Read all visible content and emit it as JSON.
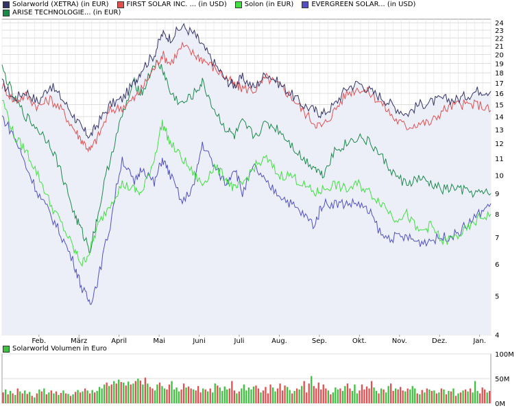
{
  "legend_main": [
    {
      "label": "Solarworld (XETRA) (in EUR)",
      "color": "#333366"
    },
    {
      "label": "FIRST SOLAR INC. ... (in USD)",
      "color": "#e05050"
    },
    {
      "label": "Solon (in EUR)",
      "color": "#40e040"
    },
    {
      "label": "EVERGREEN SOLAR... (in USD)",
      "color": "#5050c0"
    },
    {
      "label": "ARISE TECHNOLOGIE... (in EUR)",
      "color": "#1a8a4a"
    }
  ],
  "volume_legend": {
    "label": "Solarworld Volumen in Euro",
    "color": "#40c040"
  },
  "chart_data": [
    {
      "type": "line",
      "title": "",
      "y_scale": "log",
      "ylim": [
        4,
        24.5
      ],
      "y_ticks": [
        "4",
        "5",
        "6",
        "7",
        "8",
        "9",
        "10",
        "11",
        "12",
        "13",
        "14",
        "15",
        "16",
        "17",
        "18",
        "19",
        "20",
        "21",
        "22",
        "23",
        "24"
      ],
      "x_labels": [
        "Feb.",
        "März",
        "April",
        "Mai",
        "Juni",
        "Juli",
        "Aug.",
        "Sep.",
        "Okt.",
        "Nov.",
        "Dez.",
        "Jan."
      ],
      "x_range_months": [
        0,
        12.2
      ],
      "grid": true,
      "legend_position": "top",
      "series": [
        {
          "name": "Solarworld (XETRA) (in EUR)",
          "color": "#333366",
          "fill": "#eceef8",
          "points": [
            [
              0,
              17
            ],
            [
              0.3,
              15.5
            ],
            [
              0.6,
              16.2
            ],
            [
              0.9,
              15.2
            ],
            [
              1.2,
              16.8
            ],
            [
              1.5,
              15.5
            ],
            [
              1.8,
              14
            ],
            [
              2.0,
              13
            ],
            [
              2.2,
              12.5
            ],
            [
              2.4,
              13.5
            ],
            [
              2.7,
              15
            ],
            [
              3.0,
              15.5
            ],
            [
              3.3,
              17
            ],
            [
              3.5,
              18.5
            ],
            [
              3.8,
              20
            ],
            [
              4.0,
              22.5
            ],
            [
              4.2,
              22
            ],
            [
              4.5,
              23.5
            ],
            [
              4.8,
              22.5
            ],
            [
              5.0,
              21
            ],
            [
              5.3,
              19
            ],
            [
              5.6,
              17.2
            ],
            [
              5.8,
              16.8
            ],
            [
              6.0,
              17.5
            ],
            [
              6.3,
              16.5
            ],
            [
              6.6,
              18
            ],
            [
              6.9,
              17
            ],
            [
              7.2,
              16
            ],
            [
              7.5,
              15
            ],
            [
              7.8,
              14.5
            ],
            [
              8.0,
              14.2
            ],
            [
              8.3,
              15
            ],
            [
              8.6,
              16.5
            ],
            [
              8.9,
              17
            ],
            [
              9.2,
              16.2
            ],
            [
              9.5,
              15.6
            ],
            [
              9.8,
              14.8
            ],
            [
              10.1,
              14.2
            ],
            [
              10.4,
              15
            ],
            [
              10.7,
              15.2
            ],
            [
              11.0,
              15.5
            ],
            [
              11.3,
              15.4
            ],
            [
              11.6,
              15.8
            ],
            [
              11.9,
              16.3
            ],
            [
              12.2,
              16.2
            ]
          ]
        },
        {
          "name": "FIRST SOLAR INC. ... (in USD)",
          "color": "#e05050",
          "points": [
            [
              0,
              16.8
            ],
            [
              0.3,
              15.3
            ],
            [
              0.6,
              15.8
            ],
            [
              0.9,
              14.8
            ],
            [
              1.2,
              15.5
            ],
            [
              1.5,
              14.5
            ],
            [
              1.8,
              13
            ],
            [
              2.0,
              12.2
            ],
            [
              2.2,
              11.5
            ],
            [
              2.4,
              12.5
            ],
            [
              2.7,
              14.5
            ],
            [
              3.0,
              14.8
            ],
            [
              3.3,
              15.5
            ],
            [
              3.5,
              16.5
            ],
            [
              3.8,
              18.5
            ],
            [
              4.0,
              20
            ],
            [
              4.2,
              19
            ],
            [
              4.5,
              21
            ],
            [
              4.8,
              20
            ],
            [
              5.0,
              19.5
            ],
            [
              5.3,
              18.5
            ],
            [
              5.6,
              17.5
            ],
            [
              5.8,
              16.8
            ],
            [
              6.0,
              16.5
            ],
            [
              6.3,
              16.3
            ],
            [
              6.6,
              17.5
            ],
            [
              6.9,
              16.8
            ],
            [
              7.2,
              15.8
            ],
            [
              7.5,
              14.5
            ],
            [
              7.8,
              13.5
            ],
            [
              8.0,
              13.2
            ],
            [
              8.3,
              14.5
            ],
            [
              8.6,
              16
            ],
            [
              8.9,
              16.5
            ],
            [
              9.2,
              16
            ],
            [
              9.5,
              15
            ],
            [
              9.8,
              13.8
            ],
            [
              10.1,
              13.2
            ],
            [
              10.4,
              13.5
            ],
            [
              10.7,
              13.5
            ],
            [
              11.0,
              14.5
            ],
            [
              11.3,
              15
            ],
            [
              11.6,
              15
            ],
            [
              11.9,
              15
            ],
            [
              12.2,
              14.5
            ]
          ]
        },
        {
          "name": "Solon (in EUR)",
          "color": "#40e040",
          "points": [
            [
              0,
              15.5
            ],
            [
              0.3,
              12.5
            ],
            [
              0.6,
              11.5
            ],
            [
              0.9,
              10
            ],
            [
              1.2,
              8.5
            ],
            [
              1.5,
              7.5
            ],
            [
              1.8,
              6.5
            ],
            [
              2.0,
              6
            ],
            [
              2.2,
              6.5
            ],
            [
              2.4,
              7.5
            ],
            [
              2.7,
              8.5
            ],
            [
              3.0,
              9.5
            ],
            [
              3.3,
              9.2
            ],
            [
              3.5,
              9
            ],
            [
              3.8,
              11
            ],
            [
              4.0,
              13.5
            ],
            [
              4.2,
              12
            ],
            [
              4.5,
              11
            ],
            [
              4.8,
              10
            ],
            [
              5.0,
              9.5
            ],
            [
              5.3,
              10.5
            ],
            [
              5.6,
              9.8
            ],
            [
              5.8,
              9.2
            ],
            [
              6.0,
              9.5
            ],
            [
              6.3,
              10.5
            ],
            [
              6.6,
              11
            ],
            [
              6.9,
              10
            ],
            [
              7.2,
              10
            ],
            [
              7.5,
              9.5
            ],
            [
              7.8,
              9
            ],
            [
              8.0,
              9.2
            ],
            [
              8.3,
              9.5
            ],
            [
              8.6,
              9.2
            ],
            [
              8.9,
              9.5
            ],
            [
              9.2,
              9
            ],
            [
              9.5,
              8.5
            ],
            [
              9.8,
              7.8
            ],
            [
              10.1,
              8
            ],
            [
              10.4,
              7.2
            ],
            [
              10.7,
              7.5
            ],
            [
              11.0,
              6.8
            ],
            [
              11.3,
              7
            ],
            [
              11.6,
              7.3
            ],
            [
              11.9,
              7.8
            ],
            [
              12.2,
              8
            ]
          ]
        },
        {
          "name": "EVERGREEN SOLAR... (in USD)",
          "color": "#5050c0",
          "points": [
            [
              0,
              14
            ],
            [
              0.3,
              12.5
            ],
            [
              0.6,
              10.5
            ],
            [
              0.9,
              9
            ],
            [
              1.2,
              8
            ],
            [
              1.5,
              7
            ],
            [
              1.8,
              6
            ],
            [
              2.0,
              5.2
            ],
            [
              2.2,
              4.8
            ],
            [
              2.4,
              5.5
            ],
            [
              2.7,
              7.5
            ],
            [
              3.0,
              11
            ],
            [
              3.3,
              9.5
            ],
            [
              3.5,
              10.5
            ],
            [
              3.8,
              9.5
            ],
            [
              4.0,
              11
            ],
            [
              4.2,
              10
            ],
            [
              4.5,
              8.5
            ],
            [
              4.8,
              9.5
            ],
            [
              5.0,
              12
            ],
            [
              5.3,
              10.5
            ],
            [
              5.6,
              9.5
            ],
            [
              5.8,
              10.5
            ],
            [
              6.0,
              9
            ],
            [
              6.3,
              10.5
            ],
            [
              6.6,
              9.5
            ],
            [
              6.9,
              9
            ],
            [
              7.2,
              8.5
            ],
            [
              7.5,
              8
            ],
            [
              7.8,
              7.5
            ],
            [
              8.0,
              8.5
            ],
            [
              8.3,
              8.5
            ],
            [
              8.6,
              8.5
            ],
            [
              8.9,
              8.5
            ],
            [
              9.2,
              8
            ],
            [
              9.5,
              7
            ],
            [
              9.8,
              7
            ],
            [
              10.1,
              7
            ],
            [
              10.4,
              6.8
            ],
            [
              10.7,
              6.9
            ],
            [
              11.0,
              7
            ],
            [
              11.3,
              7.1
            ],
            [
              11.6,
              7.5
            ],
            [
              11.9,
              8
            ],
            [
              12.2,
              8.5
            ]
          ]
        },
        {
          "name": "ARISE TECHNOLOGIE... (in EUR)",
          "color": "#1a8a4a",
          "points": [
            [
              0,
              18.5
            ],
            [
              0.3,
              15.5
            ],
            [
              0.6,
              14
            ],
            [
              0.9,
              13
            ],
            [
              1.2,
              12
            ],
            [
              1.5,
              10
            ],
            [
              1.8,
              8
            ],
            [
              2.0,
              7.2
            ],
            [
              2.2,
              6.5
            ],
            [
              2.4,
              8
            ],
            [
              2.7,
              11
            ],
            [
              3.0,
              14
            ],
            [
              3.3,
              17
            ],
            [
              3.5,
              16
            ],
            [
              3.8,
              19
            ],
            [
              4.0,
              18.5
            ],
            [
              4.2,
              16
            ],
            [
              4.5,
              15
            ],
            [
              4.8,
              16
            ],
            [
              5.0,
              17
            ],
            [
              5.3,
              14.5
            ],
            [
              5.6,
              13
            ],
            [
              5.8,
              12.5
            ],
            [
              6.0,
              13.5
            ],
            [
              6.3,
              12.5
            ],
            [
              6.6,
              13.5
            ],
            [
              6.9,
              13
            ],
            [
              7.2,
              12
            ],
            [
              7.5,
              11
            ],
            [
              7.8,
              10.5
            ],
            [
              8.0,
              10
            ],
            [
              8.3,
              11.5
            ],
            [
              8.6,
              12
            ],
            [
              8.9,
              12.5
            ],
            [
              9.2,
              12
            ],
            [
              9.5,
              11
            ],
            [
              9.8,
              10
            ],
            [
              10.1,
              9.5
            ],
            [
              10.4,
              9.8
            ],
            [
              10.7,
              9.5
            ],
            [
              11.0,
              9.2
            ],
            [
              11.3,
              9.3
            ],
            [
              11.6,
              9.1
            ],
            [
              11.9,
              9
            ],
            [
              12.2,
              9
            ]
          ]
        }
      ]
    },
    {
      "type": "bar",
      "title": "",
      "ylabel": "",
      "ylim": [
        0,
        100
      ],
      "y_ticks": [
        "0M",
        "50M",
        "100M"
      ],
      "bar_colors": [
        "#e05050",
        "#40c040"
      ],
      "values": [
        22,
        28,
        18,
        25,
        20,
        17,
        30,
        24,
        20,
        26,
        19,
        23,
        15,
        12,
        20,
        28,
        24,
        30,
        18,
        22,
        26,
        20,
        24,
        17,
        21,
        26,
        20,
        19,
        15,
        18,
        23,
        27,
        22,
        24,
        30,
        26,
        20,
        27,
        22,
        25,
        33,
        30,
        38,
        42,
        35,
        38,
        45,
        40,
        48,
        43,
        42,
        36,
        44,
        38,
        40,
        45,
        50,
        46,
        38,
        52,
        40,
        33,
        30,
        26,
        38,
        42,
        35,
        30,
        28,
        38,
        45,
        28,
        32,
        24,
        28,
        40,
        32,
        34,
        30,
        28,
        26,
        35,
        22,
        30,
        28,
        24,
        30,
        22,
        40,
        36,
        32,
        25,
        34,
        28,
        30,
        45,
        26,
        20,
        24,
        30,
        38,
        26,
        32,
        28,
        34,
        36,
        30,
        22,
        26,
        33,
        20,
        38,
        32,
        24,
        30,
        40,
        26,
        36,
        33,
        27,
        20,
        25,
        30,
        28,
        35,
        45,
        22,
        40,
        55,
        35,
        30,
        42,
        28,
        38,
        30,
        26,
        18,
        22,
        32,
        28,
        30,
        25,
        35,
        40,
        30,
        25,
        38,
        20,
        26,
        38,
        28,
        34,
        30,
        45,
        32,
        25,
        20,
        30,
        28,
        22,
        35,
        40,
        25,
        30,
        28,
        33,
        26,
        24,
        30,
        28,
        35,
        30,
        20,
        18,
        27,
        22,
        30,
        28,
        25,
        26,
        20,
        22,
        30,
        28,
        18,
        25,
        24,
        30,
        15,
        20,
        22,
        26,
        28,
        24,
        30,
        22,
        45,
        25,
        20,
        32,
        28,
        22,
        25
      ]
    }
  ]
}
